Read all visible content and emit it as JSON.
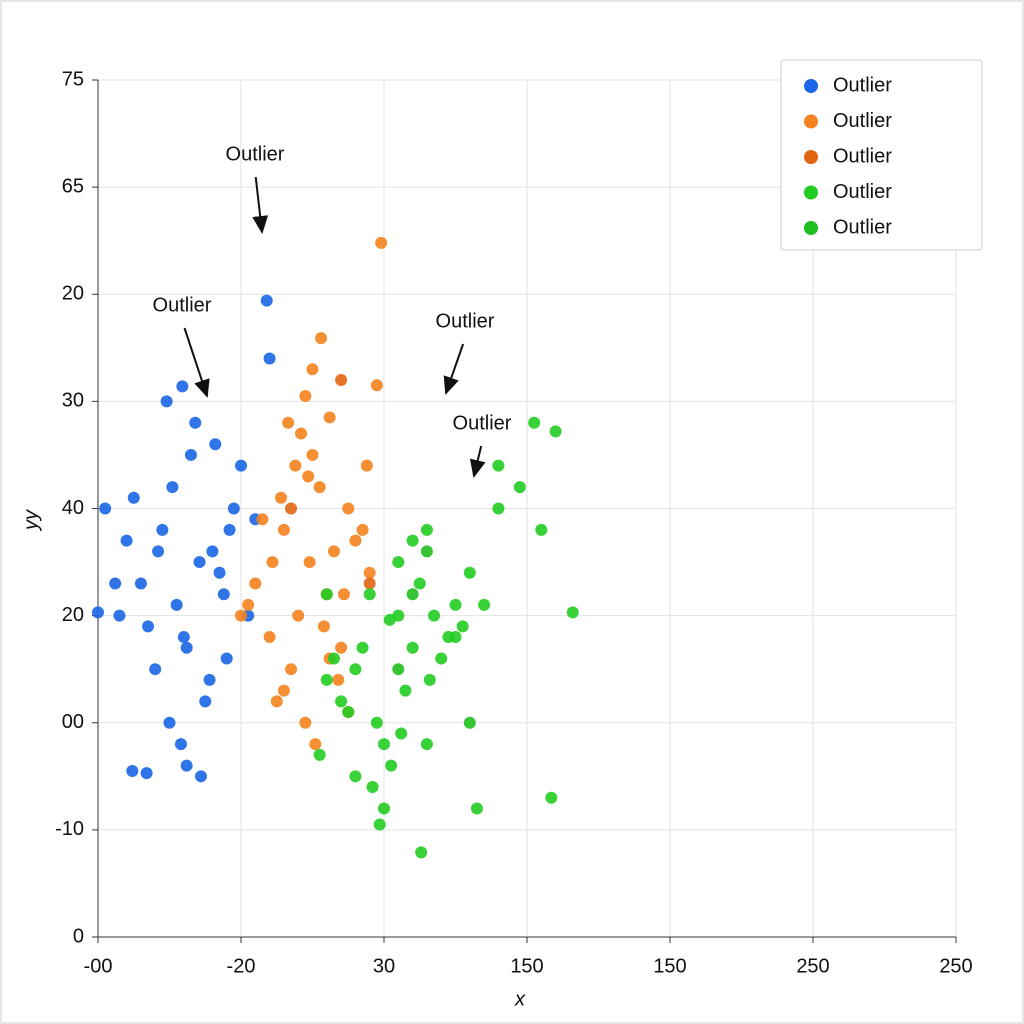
{
  "chart_data": {
    "type": "scatter",
    "xlabel": "x",
    "ylabel": "yy",
    "xlim": [
      0,
      6
    ],
    "xticks": [
      {
        "value": 0,
        "label": "-00"
      },
      {
        "value": 1,
        "label": "-20"
      },
      {
        "value": 2,
        "label": "30"
      },
      {
        "value": 3,
        "label": "150"
      },
      {
        "value": 4,
        "label": "150"
      },
      {
        "value": 5,
        "label": "250"
      },
      {
        "value": 6,
        "label": "250"
      }
    ],
    "ylim": [
      0,
      80
    ],
    "yticks": [
      0,
      {
        "value": 10,
        "label": "-10"
      },
      {
        "value": 20,
        "label": "00"
      },
      {
        "value": 30,
        "label": "20"
      },
      {
        "value": 40,
        "label": "40"
      },
      {
        "value": 50,
        "label": "30"
      },
      {
        "value": 60,
        "label": "20"
      },
      {
        "value": 70,
        "label": "65"
      },
      {
        "value": 80,
        "label": "75"
      }
    ],
    "grid": true,
    "legend": "upper right",
    "annotations": [
      "Outlier",
      "Outlier",
      "Outlier",
      "Outlier"
    ],
    "series": [
      {
        "name": "Outlier",
        "color": "#1a66e6",
        "x": [
          0.71,
          0.45,
          0.88,
          0.6,
          0.95,
          0.3,
          0.52,
          0.8,
          1.05,
          0.4,
          0.65,
          0.2,
          0.75,
          0.9,
          0.55,
          1.1,
          0.35,
          0.68,
          0.85,
          0.25,
          0.5,
          1.0,
          0.62,
          0.42,
          0.78,
          0.15,
          0.58,
          0.92,
          0.48,
          0.72,
          1.18,
          0.59,
          0.34,
          0.0,
          0.05,
          0.24,
          0.62,
          1.2,
          0.82,
          0.12
        ],
        "values": [
          35,
          38,
          32,
          28,
          40,
          33,
          42,
          36,
          30,
          25,
          45,
          37,
          22,
          26,
          31,
          39,
          29,
          48,
          34,
          41,
          20,
          44,
          27,
          36,
          24,
          30,
          18,
          38,
          50,
          15,
          59.4,
          51.4,
          15.3,
          30.3,
          40,
          15.5,
          16,
          54,
          46,
          33
        ]
      },
      {
        "name": "Outlier",
        "color": "#f5821e",
        "x": [
          1.48,
          1.3,
          1.6,
          1.2,
          1.75,
          1.4,
          1.55,
          1.1,
          1.65,
          1.35,
          1.8,
          1.25,
          1.5,
          1.7,
          1.15,
          1.45,
          1.9,
          1.38,
          1.58,
          1.28,
          1.68,
          1.05,
          1.52,
          1.42,
          1.85,
          1.22,
          1.62,
          1.33,
          1.72,
          1.47,
          1.98,
          1.56,
          1.5,
          1.45,
          1.95,
          1.62,
          1.3,
          1.88,
          1.0,
          1.75
        ],
        "values": [
          35,
          38,
          32,
          28,
          40,
          30,
          42,
          33,
          36,
          25,
          37,
          22,
          45,
          27,
          39,
          20,
          34,
          44,
          29,
          41,
          24,
          31,
          18,
          47,
          38,
          35,
          26,
          48,
          32,
          43,
          64.8,
          55.9,
          53,
          50.5,
          51.5,
          48.5,
          23,
          44,
          30,
          21
        ]
      },
      {
        "name": "Outlier",
        "color": "#e06512",
        "x": [
          1.7,
          1.35,
          1.9
        ],
        "values": [
          52,
          40,
          33
        ]
      },
      {
        "name": "Outlier",
        "color": "#22cc22",
        "x": [
          2.04,
          1.9,
          2.2,
          1.8,
          2.35,
          1.7,
          2.1,
          2.45,
          1.95,
          2.25,
          1.6,
          2.5,
          2.0,
          2.3,
          1.85,
          2.15,
          2.6,
          1.75,
          2.4,
          2.05,
          2.55,
          1.65,
          2.2,
          1.92,
          2.7,
          2.12,
          2.8,
          2.32,
          1.55,
          2.0,
          3.2,
          3.32,
          2.26,
          1.97,
          2.8,
          3.1,
          2.65,
          2.95,
          2.5,
          3.05,
          2.3,
          1.8,
          2.1,
          3.17,
          1.6
        ],
        "values": [
          29.6,
          32,
          27,
          25,
          30,
          22,
          35,
          28,
          20,
          33,
          24,
          31,
          18,
          38,
          27,
          23,
          34,
          21,
          26,
          16,
          29,
          26,
          37,
          14,
          31,
          19,
          40,
          24,
          17,
          12,
          47.2,
          30.3,
          7.9,
          10.5,
          44,
          38,
          12,
          42,
          28,
          48,
          18,
          15,
          30,
          13,
          32
        ]
      },
      {
        "name": "Outlier",
        "color": "#1fbf1f",
        "x": [
          2.3,
          2.1,
          2.6,
          2.2
        ],
        "values": [
          36,
          25,
          20,
          32
        ]
      }
    ]
  }
}
